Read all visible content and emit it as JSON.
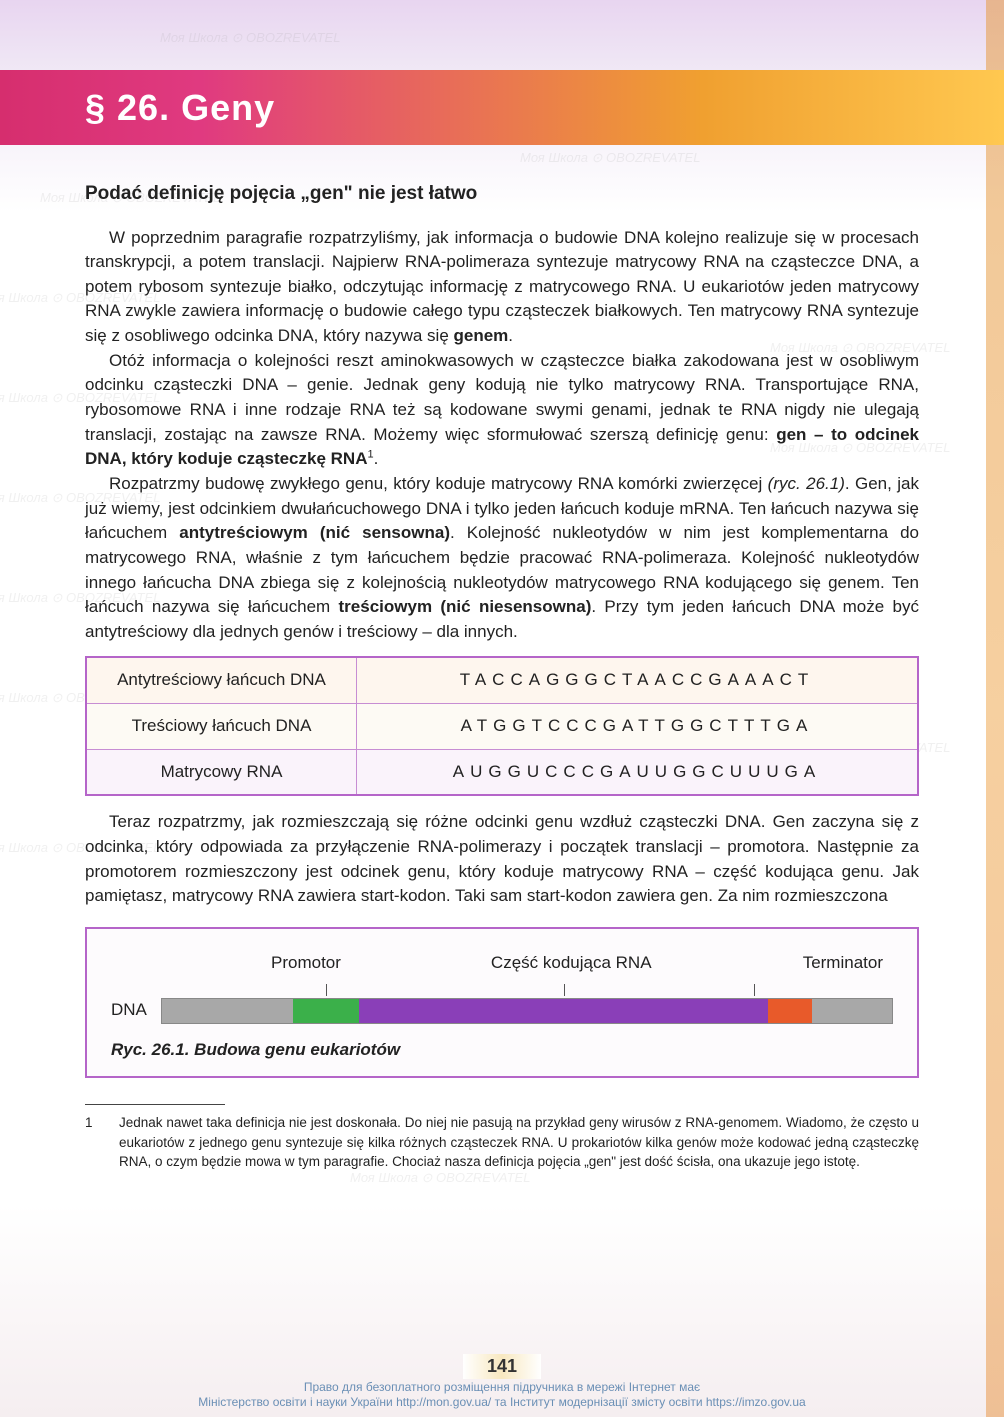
{
  "chapter": {
    "title": "§ 26. Geny",
    "title_bg_gradient": [
      "#d62e6e",
      "#e03a80",
      "#f0a030",
      "#ffc850"
    ],
    "title_color": "#ffffff"
  },
  "subheading": "Podać definicję pojęcia „gen\" nie jest łatwo",
  "paragraphs": {
    "p1": "W poprzednim paragrafie rozpatrzyliśmy, jak informacja o budowie DNA kolejno realizuje się w procesach transkrypcji, a potem translacji. Najpierw RNA-polimeraza syntezuje matrycowy RNA na cząsteczce DNA, a potem rybosom syntezuje białko, odczytując informację z matrycowego RNA. U eukariotów jeden matrycowy RNA zwykle zawiera informację o budowie całego typu cząsteczek białkowych. Ten matrycowy RNA syntezuje się z osobliwego odcinka DNA, który nazywa się ",
    "p1_bold": "genem",
    "p1_end": ".",
    "p2": "Otóż informacja o kolejności reszt aminokwasowych w cząsteczce białka zakodowana jest w osobliwym odcinku cząsteczki DNA – genie. Jednak geny kodują nie tylko matrycowy RNA. Transportujące RNA, rybosomowe RNA i inne rodzaje RNA też są kodowane swymi genami, jednak te RNA nigdy nie ulegają translacji, zostając na zawsze RNA. Możemy więc sformułować szerszą definicję genu: ",
    "p2_bold": "gen – to odcinek DNA, który koduje cząsteczkę RNA",
    "p2_sup": "1",
    "p2_end": ".",
    "p3a": "Rozpatrzmy budowę zwykłego genu, który koduje matrycowy RNA komórki zwierzęcej ",
    "p3_ref": "(ryc. 26.1)",
    "p3b": ". Gen, jak już wiemy, jest odcinkiem dwułańcuchowego DNA i tylko jeden łańcuch koduje mRNA. Ten łańcuch nazywa się łańcuchem ",
    "p3_bold1": "antytreściowym (nić sensowna)",
    "p3c": ". Kolejność nukleotydów w nim jest komplementarna do matrycowego RNA, właśnie z tym łańcuchem będzie pracować RNA-polimeraza. Kolejność nukleotydów innego łańcucha DNA zbiega się z kolejnością nukleotydów matrycowego RNA kodującego się genem. Ten łańcuch nazywa się łańcuchem ",
    "p3_bold2": "treściowym (nić niesensowna)",
    "p3d": ". Przy tym jeden łańcuch DNA może być antytreściowy dla jednych genów i treściowy – dla innych.",
    "p4": "Teraz rozpatrzmy, jak rozmieszczają się różne odcinki genu wzdłuż cząsteczki DNA. Gen zaczyna się z odcinka, który odpowiada za przyłączenie RNA-polimerazy i początek translacji – promotora. Następnie za promotorem rozmieszczony jest odcinek genu, który koduje matrycowy RNA – część kodująca genu. Jak pamiętasz, matrycowy RNA zawiera start-kodon. Taki sam start-kodon zawiera gen. Za nim rozmieszczona"
  },
  "seq_table": {
    "border_color": "#b565c9",
    "rows": [
      {
        "label": "Antytreściowy łańcuch DNA",
        "seq": "TACCAGGGCTAACCGAAACT",
        "bg": "#fef6ee"
      },
      {
        "label": "Treściowy łańcuch DNA",
        "seq": "ATGGTCCCGATTGGCTTTGA",
        "bg": "#fdfaf4"
      },
      {
        "label": "Matrycowy RNA",
        "seq": "AUGGUCCCGAUUGGCUUUGA",
        "bg": "#faf3fb"
      }
    ]
  },
  "diagram": {
    "border_color": "#b565c9",
    "bg_color": "#fdfbfd",
    "labels": {
      "promotor": "Promotor",
      "coding": "Część kodująca RNA",
      "terminator": "Terminator"
    },
    "dna_label": "DNA",
    "segments": [
      {
        "color": "#a8a8a8",
        "width_pct": 18
      },
      {
        "color": "#3bb04a",
        "width_pct": 9
      },
      {
        "color": "#8a3fb8",
        "width_pct": 56
      },
      {
        "color": "#e85a2a",
        "width_pct": 6
      },
      {
        "color": "#a8a8a8",
        "width_pct": 11
      }
    ],
    "tick_positions_pct": [
      22.5,
      55,
      81
    ],
    "caption": "Ryc. 26.1. Budowa genu eukariotów"
  },
  "footnote": {
    "num": "1",
    "text": "Jednak nawet taka definicja nie jest doskonała. Do niej nie pasują na przykład geny wirusów z RNA-genomem. Wiadomo, że często u eukariotów z jednego genu syntezuje się kilka różnych cząsteczek RNA. U prokariotów kilka genów może kodować jedną cząsteczkę RNA, o czym będzie mowa w tym paragrafie. Chociaż nasza definicja pojęcia „gen\" jest dość ścisła, ona ukazuje jego istotę."
  },
  "page_number": "141",
  "credits": {
    "line1": "Право для безоплатного розміщення підручника в мережі Інтернет має",
    "line2": "Міністерство освіти і науки України http://mon.gov.ua/ та Інститут модернізації змісту освіти https://imzo.gov.ua"
  },
  "watermark_text": "Моя Школа ⊙ OBOZREVATEL",
  "colors": {
    "text": "#222222",
    "credits": "#6a8fb5",
    "side_strip": "#eaa058"
  }
}
